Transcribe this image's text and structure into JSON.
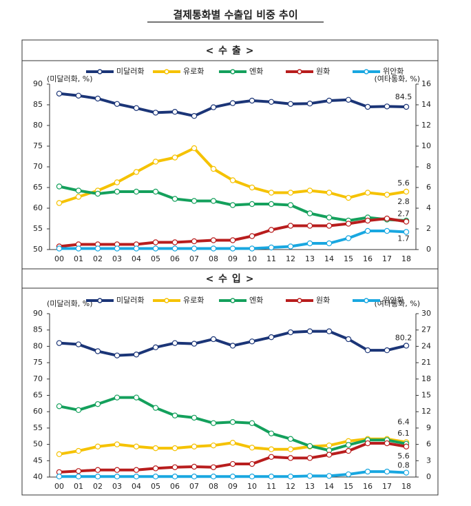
{
  "title": "결제통화별 수출입 비중 추이",
  "chart_data": [
    {
      "type": "line",
      "title": "< 수   출 >",
      "y_label": "(미달러화, %)",
      "y2_label": "(여타통화, %)",
      "categories": [
        "00",
        "01",
        "02",
        "03",
        "04",
        "05",
        "06",
        "07",
        "08",
        "09",
        "10",
        "11",
        "12",
        "13",
        "14",
        "15",
        "16",
        "17",
        "18"
      ],
      "ylim": [
        50,
        90
      ],
      "yticks": [
        50,
        55,
        60,
        65,
        70,
        75,
        80,
        85,
        90
      ],
      "y2lim": [
        0,
        16
      ],
      "y2ticks": [
        0,
        2,
        4,
        6,
        8,
        10,
        12,
        14,
        16
      ],
      "series": [
        {
          "name": "미달러화",
          "color": "#1b3577",
          "values": [
            87.7,
            87.2,
            86.5,
            85.2,
            84.2,
            83.1,
            83.3,
            82.3,
            84.4,
            85.4,
            86.0,
            85.7,
            85.2,
            85.3,
            86.0,
            86.2,
            84.5,
            84.6,
            84.5
          ]
        },
        {
          "name": "유로화",
          "color": "#f5c200",
          "axis": "y2",
          "values": [
            4.5,
            5.1,
            5.7,
            6.5,
            7.5,
            8.5,
            8.9,
            9.8,
            7.8,
            6.7,
            6.0,
            5.5,
            5.5,
            5.7,
            5.5,
            5.0,
            5.5,
            5.3,
            5.6
          ]
        },
        {
          "name": "엔화",
          "color": "#14a05c",
          "axis": "y2",
          "values": [
            6.1,
            5.7,
            5.4,
            5.6,
            5.6,
            5.6,
            4.9,
            4.7,
            4.7,
            4.3,
            4.4,
            4.4,
            4.3,
            3.5,
            3.1,
            2.8,
            3.1,
            2.9,
            2.8
          ]
        },
        {
          "name": "원화",
          "color": "#b81d1d",
          "axis": "y2",
          "values": [
            0.3,
            0.5,
            0.5,
            0.5,
            0.5,
            0.7,
            0.7,
            0.8,
            0.9,
            0.9,
            1.3,
            1.9,
            2.3,
            2.3,
            2.3,
            2.5,
            2.8,
            3.0,
            2.7
          ]
        },
        {
          "name": "위안화",
          "color": "#19a7e0",
          "axis": "y2",
          "values": [
            0.1,
            0.1,
            0.1,
            0.1,
            0.1,
            0.1,
            0.1,
            0.1,
            0.1,
            0.1,
            0.1,
            0.2,
            0.3,
            0.6,
            0.6,
            1.1,
            1.8,
            1.8,
            1.7
          ]
        }
      ]
    },
    {
      "type": "line",
      "title": "< 수   입 >",
      "y_label": "(미달러화, %)",
      "y2_label": "(여타통화, %)",
      "categories": [
        "00",
        "01",
        "02",
        "03",
        "04",
        "05",
        "06",
        "07",
        "08",
        "09",
        "10",
        "11",
        "12",
        "13",
        "14",
        "15",
        "16",
        "17",
        "18"
      ],
      "ylim": [
        40,
        90
      ],
      "yticks": [
        40,
        45,
        50,
        55,
        60,
        65,
        70,
        75,
        80,
        85,
        90
      ],
      "y2lim": [
        0,
        30
      ],
      "y2ticks": [
        0,
        3,
        6,
        9,
        12,
        15,
        18,
        21,
        24,
        27,
        30
      ],
      "series": [
        {
          "name": "미달러화",
          "color": "#1b3577",
          "values": [
            81.0,
            80.6,
            78.5,
            77.2,
            77.5,
            79.7,
            81.0,
            80.8,
            82.2,
            80.2,
            81.5,
            82.8,
            84.3,
            84.6,
            84.6,
            82.2,
            78.8,
            78.8,
            80.2
          ]
        },
        {
          "name": "유로화",
          "color": "#f5c200",
          "axis": "y2",
          "values": [
            4.2,
            4.8,
            5.6,
            6.0,
            5.6,
            5.3,
            5.3,
            5.6,
            5.8,
            6.3,
            5.4,
            5.1,
            5.1,
            5.6,
            5.8,
            6.6,
            7.0,
            7.0,
            6.4
          ]
        },
        {
          "name": "엔화",
          "color": "#14a05c",
          "axis": "y2",
          "values": [
            13.0,
            12.3,
            13.4,
            14.6,
            14.6,
            12.7,
            11.3,
            10.9,
            9.9,
            10.1,
            9.9,
            8.0,
            7.0,
            5.7,
            4.9,
            5.9,
            6.8,
            6.8,
            6.1
          ]
        },
        {
          "name": "원화",
          "color": "#b81d1d",
          "axis": "y2",
          "values": [
            0.9,
            1.1,
            1.3,
            1.3,
            1.3,
            1.6,
            1.8,
            1.9,
            1.8,
            2.4,
            2.4,
            3.7,
            3.5,
            3.5,
            4.1,
            4.8,
            6.2,
            6.2,
            5.6
          ]
        },
        {
          "name": "위안화",
          "color": "#19a7e0",
          "axis": "y2",
          "values": [
            0.1,
            0.1,
            0.1,
            0.1,
            0.1,
            0.1,
            0.1,
            0.1,
            0.1,
            0.1,
            0.1,
            0.1,
            0.1,
            0.2,
            0.2,
            0.5,
            1.0,
            1.0,
            0.8
          ]
        }
      ]
    }
  ]
}
